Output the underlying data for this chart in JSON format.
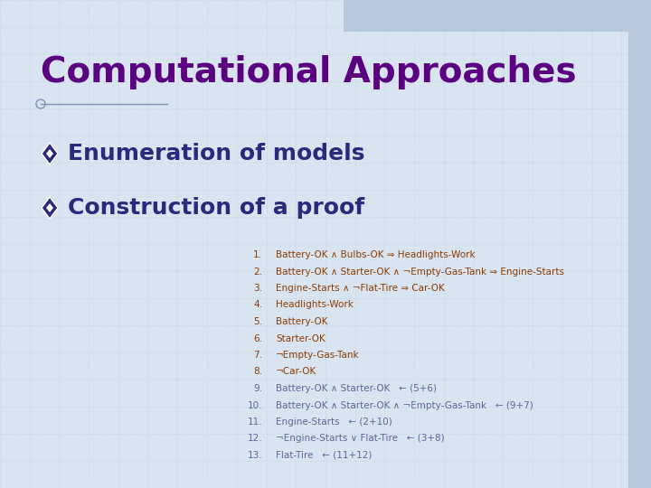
{
  "title": "Computational Approaches",
  "title_color": "#5B0080",
  "title_fontsize": 28,
  "title_bold": true,
  "bg_color": "#d8e4f0",
  "bullet_color": "#2a2a7c",
  "bullet_items": [
    "Enumeration of models",
    "Construction of a proof"
  ],
  "bullet_fontsize": 18,
  "proof_items_dark": [
    "Battery-OK ∧ Bulbs-OK ⇒ Headlights-Work",
    "Battery-OK ∧ Starter-OK ∧ ¬Empty-Gas-Tank ⇒ Engine-Starts",
    "Engine-Starts ∧ ¬Flat-Tire ⇒ Car-OK",
    "Headlights-Work",
    "Battery-OK",
    "Starter-OK",
    "¬Empty-Gas-Tank",
    "¬Car-OK"
  ],
  "proof_items_light": [
    "Battery-OK ∧ Starter-OK   ← (5+6)",
    "Battery-OK ∧ Starter-OK ∧ ¬Empty-Gas-Tank   ← (9+7)",
    "Engine-Starts   ← (2+10)",
    "¬Engine-Starts ∨ Flat-Tire   ← (3+8)",
    "Flat-Tire   ← (11+12)"
  ],
  "proof_color_dark": "#8B3A00",
  "proof_color_light": "#5a6898",
  "proof_fontsize": 7.5,
  "grid_color": "#c0cfe0",
  "header_bar_color": "#b8c8dc",
  "right_bar_color": "#b8c8dc",
  "line_color": "#8090b0",
  "circle_color": "#8090b0"
}
